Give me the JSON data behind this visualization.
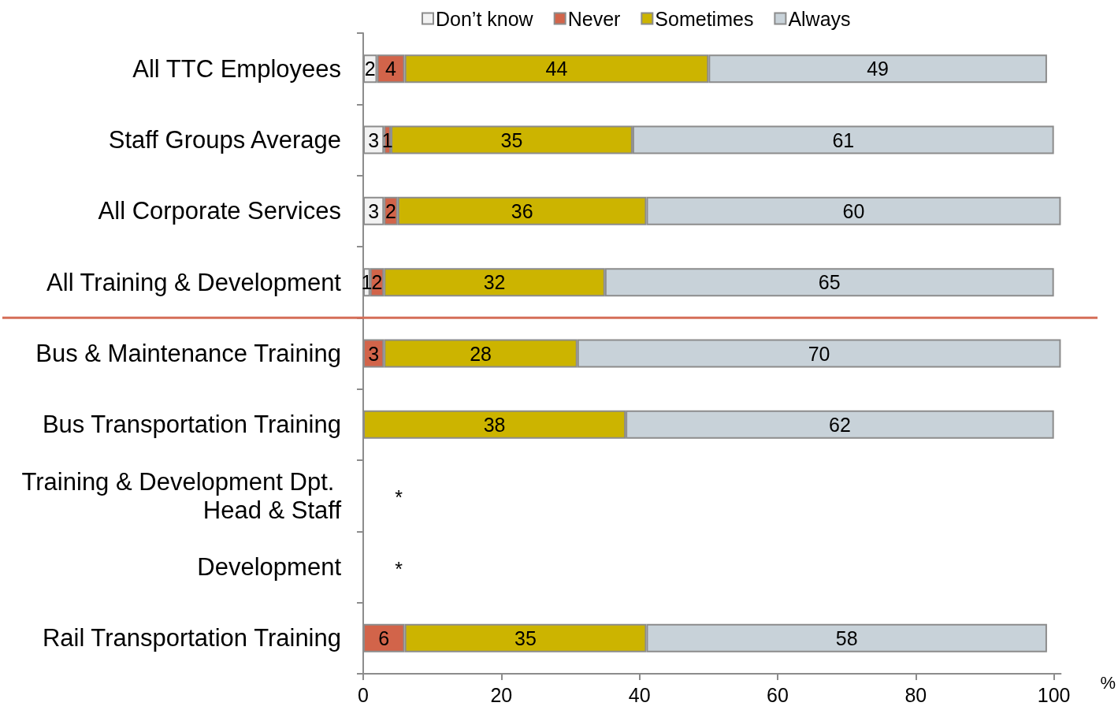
{
  "chart_data": {
    "type": "bar",
    "orientation": "horizontal",
    "stacked": true,
    "categories": [
      "All TTC Employees",
      "Staff Groups Average",
      "All Corporate Services",
      "All Training & Development",
      "Bus & Maintenance Training",
      "Bus Transportation Training",
      "Training & Development Dpt. Head & Staff",
      "Development",
      "Rail Transportation Training"
    ],
    "series": [
      {
        "name": "Don’t know",
        "color": "#f2f2f2",
        "values": [
          2,
          3,
          3,
          1,
          null,
          null,
          null,
          null,
          null
        ]
      },
      {
        "name": "Never",
        "color": "#d2644a",
        "values": [
          4,
          1,
          2,
          2,
          3,
          null,
          null,
          null,
          6
        ]
      },
      {
        "name": "Sometimes",
        "color": "#ccb400",
        "values": [
          44,
          35,
          36,
          32,
          28,
          38,
          null,
          null,
          35
        ]
      },
      {
        "name": "Always",
        "color": "#c8d2d9",
        "values": [
          49,
          61,
          60,
          65,
          70,
          62,
          null,
          null,
          58
        ]
      }
    ],
    "xlim": [
      0,
      101
    ],
    "xticks": [
      0,
      20,
      40,
      60,
      80,
      100
    ],
    "xlabel": "%",
    "data_labels": true,
    "legend": "top",
    "ref_lines": [
      {
        "axis": "y",
        "value": "Bus & Maintenance Training",
        "color": "#d56e57"
      }
    ],
    "annotations": [
      "*",
      "*"
    ]
  }
}
